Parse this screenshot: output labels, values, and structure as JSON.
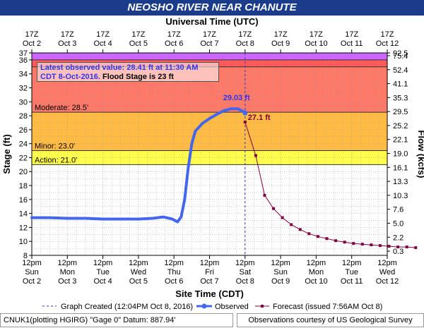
{
  "header": {
    "title": "NEOSHO RIVER NEAR CHANUTE",
    "top_axis_title": "Universal Time (UTC)"
  },
  "info_box": {
    "line1": "Latest observed value: 28.41 ft at 11:30 AM",
    "line2_date": "CDT 8-Oct-2016.",
    "line2_flood": "Flood Stage is 23 ft"
  },
  "footer": {
    "left": "CNUK1(plotting HGIRG) \"Gage 0\" Datum: 887.94'",
    "right": "Observations courtesy of US Geological Survey"
  },
  "colors": {
    "record": "#cc66ff",
    "major": "#e8888c",
    "major_dark": "#ff5a5a",
    "moderate": "#ff8c66",
    "minor": "#ffbb44",
    "action": "#ffff4c",
    "observed": "#4466ee",
    "forecast": "#800040",
    "title_bg": "#1a3c8a"
  },
  "chart_data": {
    "type": "line",
    "title": "NEOSHO RIVER NEAR CHANUTE",
    "xlabel": "Site Time (CDT)",
    "xlabel_top": "Universal Time (UTC)",
    "ylabel": "Stage (ft)",
    "ylabel_right": "Flow (kcfs)",
    "ylim": [
      8,
      37
    ],
    "y_ticks": [
      8,
      10,
      12,
      14,
      16,
      18,
      20,
      22,
      24,
      26,
      28,
      30,
      32,
      34,
      36,
      37
    ],
    "right_ticks": [
      {
        "stage": 8.6,
        "label": "0.3"
      },
      {
        "stage": 10.6,
        "label": "2.2"
      },
      {
        "stage": 12.6,
        "label": "5.0"
      },
      {
        "stage": 14.6,
        "label": "7.6"
      },
      {
        "stage": 16.6,
        "label": "10.3"
      },
      {
        "stage": 18.6,
        "label": "13.3"
      },
      {
        "stage": 20.6,
        "label": "16.1"
      },
      {
        "stage": 22.6,
        "label": "19.0"
      },
      {
        "stage": 24.6,
        "label": "22.1"
      },
      {
        "stage": 26.6,
        "label": "25.2"
      },
      {
        "stage": 28.6,
        "label": "29.5"
      },
      {
        "stage": 30.6,
        "label": "35.3"
      },
      {
        "stage": 32.6,
        "label": "41.1"
      },
      {
        "stage": 34.6,
        "label": "52.4"
      },
      {
        "stage": 36.6,
        "label": "75.4"
      },
      {
        "stage": 37.0,
        "label": "92.5"
      }
    ],
    "x_ticks_bottom": [
      {
        "t": "12pm",
        "d": "Sun",
        "e": "Oct 2"
      },
      {
        "t": "12pm",
        "d": "Mon",
        "e": "Oct 3"
      },
      {
        "t": "12pm",
        "d": "Tue",
        "e": "Oct 4"
      },
      {
        "t": "12pm",
        "d": "Wed",
        "e": "Oct 5"
      },
      {
        "t": "12pm",
        "d": "Thu",
        "e": "Oct 6"
      },
      {
        "t": "12pm",
        "d": "Fri",
        "e": "Oct 7"
      },
      {
        "t": "12pm",
        "d": "Sat",
        "e": "Oct 8"
      },
      {
        "t": "12pm",
        "d": "Sun",
        "e": "Oct 9"
      },
      {
        "t": "12pm",
        "d": "Mon",
        "e": "Oct 10"
      },
      {
        "t": "12pm",
        "d": "Tue",
        "e": "Oct 11"
      },
      {
        "t": "12pm",
        "d": "Wed",
        "e": "Oct 12"
      }
    ],
    "x_ticks_top": [
      {
        "t": "17Z",
        "d": "Oct 2"
      },
      {
        "t": "17Z",
        "d": "Oct 3"
      },
      {
        "t": "17Z",
        "d": "Oct 4"
      },
      {
        "t": "17Z",
        "d": "Oct 5"
      },
      {
        "t": "17Z",
        "d": "Oct 6"
      },
      {
        "t": "17Z",
        "d": "Oct 7"
      },
      {
        "t": "17Z",
        "d": "Oct 8"
      },
      {
        "t": "17Z",
        "d": "Oct 9"
      },
      {
        "t": "17Z",
        "d": "Oct 10"
      },
      {
        "t": "17Z",
        "d": "Oct 11"
      },
      {
        "t": "17Z",
        "d": "Oct 12"
      }
    ],
    "flood_categories": [
      {
        "name": "Action",
        "label": "Action: 21.0'",
        "from": 21.0,
        "to": 23.0
      },
      {
        "name": "Minor",
        "label": "Minor: 23.0'",
        "from": 23.0,
        "to": 28.5
      },
      {
        "name": "Moderate",
        "label": "Moderate: 28.5'",
        "from": 28.5,
        "to": 35.0
      },
      {
        "name": "Major",
        "from": 35.0,
        "to": 36.0
      },
      {
        "name": "Record",
        "from": 36.0,
        "to": 37.0
      }
    ],
    "graph_created_day": 6.0,
    "series": [
      {
        "name": "Observed",
        "points": [
          [
            0.0,
            13.4
          ],
          [
            0.5,
            13.4
          ],
          [
            1.0,
            13.3
          ],
          [
            1.5,
            13.3
          ],
          [
            2.0,
            13.2
          ],
          [
            2.5,
            13.2
          ],
          [
            3.0,
            13.2
          ],
          [
            3.4,
            13.3
          ],
          [
            3.7,
            13.5
          ],
          [
            3.95,
            13.2
          ],
          [
            4.1,
            12.8
          ],
          [
            4.2,
            13.5
          ],
          [
            4.3,
            16.0
          ],
          [
            4.4,
            20.5
          ],
          [
            4.5,
            24.0
          ],
          [
            4.6,
            25.8
          ],
          [
            4.8,
            26.9
          ],
          [
            5.0,
            27.6
          ],
          [
            5.2,
            28.2
          ],
          [
            5.4,
            28.7
          ],
          [
            5.6,
            29.0
          ],
          [
            5.8,
            29.0
          ],
          [
            5.95,
            28.6
          ],
          [
            6.0,
            28.4
          ]
        ],
        "peak_label": "29.03 ft"
      },
      {
        "name": "Forecast",
        "points": [
          [
            6.0,
            27.1
          ],
          [
            6.3,
            22.3
          ],
          [
            6.55,
            16.6
          ],
          [
            6.8,
            14.7
          ],
          [
            7.05,
            13.4
          ],
          [
            7.3,
            12.4
          ],
          [
            7.55,
            11.7
          ],
          [
            7.8,
            11.1
          ],
          [
            8.05,
            10.7
          ],
          [
            8.3,
            10.4
          ],
          [
            8.55,
            10.1
          ],
          [
            8.8,
            9.9
          ],
          [
            9.05,
            9.7
          ],
          [
            9.3,
            9.6
          ],
          [
            9.55,
            9.5
          ],
          [
            9.8,
            9.4
          ],
          [
            10.05,
            9.3
          ],
          [
            10.3,
            9.2
          ],
          [
            10.55,
            9.2
          ],
          [
            10.8,
            9.1
          ]
        ],
        "start_label": "27.1 ft"
      }
    ],
    "legend": [
      {
        "kind": "dashed",
        "label": "Graph Created (12:04PM Oct 8, 2016)"
      },
      {
        "kind": "observed",
        "label": "Observed"
      },
      {
        "kind": "forecast",
        "label": "Forecast (issued 7:56AM Oct 8)"
      }
    ],
    "grid": true
  }
}
